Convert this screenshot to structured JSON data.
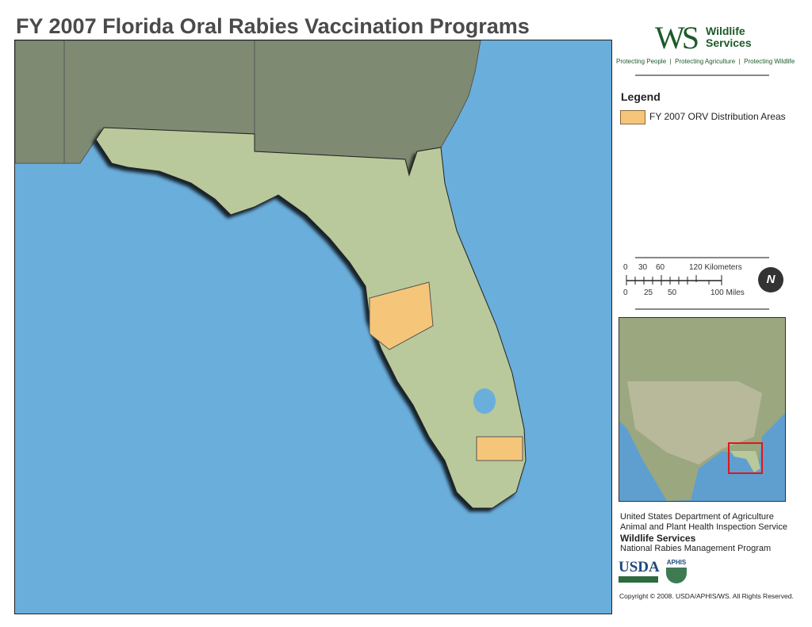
{
  "title": "FY 2007 Florida Oral Rabies Vaccination Programs",
  "logo": {
    "mark": "WS",
    "name_line1": "Wildlife",
    "name_line2": "Services",
    "tagline": [
      "Protecting People",
      "Protecting Agriculture",
      "Protecting Wildlife"
    ]
  },
  "legend": {
    "heading": "Legend",
    "items": [
      {
        "label": "FY 2007 ORV Distribution Areas",
        "color": "#f5c57a"
      }
    ]
  },
  "scale": {
    "km_labels": [
      "0",
      "30",
      "60",
      "120 Kilometers"
    ],
    "mi_labels": [
      "0",
      "25",
      "50",
      "100 Miles"
    ]
  },
  "north_arrow": {
    "icon": "north-arrow-icon",
    "letter": "N"
  },
  "colors": {
    "water": "#6aaedc",
    "land": "#b9c99b",
    "neighbor_land": "#7e8b72",
    "distribution_area": "#f5c57a",
    "inset_box": "#e0161b"
  },
  "credits": {
    "line1": "United States Department of Agriculture",
    "line2": "Animal and Plant Health Inspection Service",
    "line3": "Wildlife Services",
    "line4": "National Rabies Management Program",
    "usda": "USDA",
    "aphis": "APHIS",
    "copyright": "Copyright © 2008. USDA/APHIS/WS.  All Rights Reserved."
  }
}
